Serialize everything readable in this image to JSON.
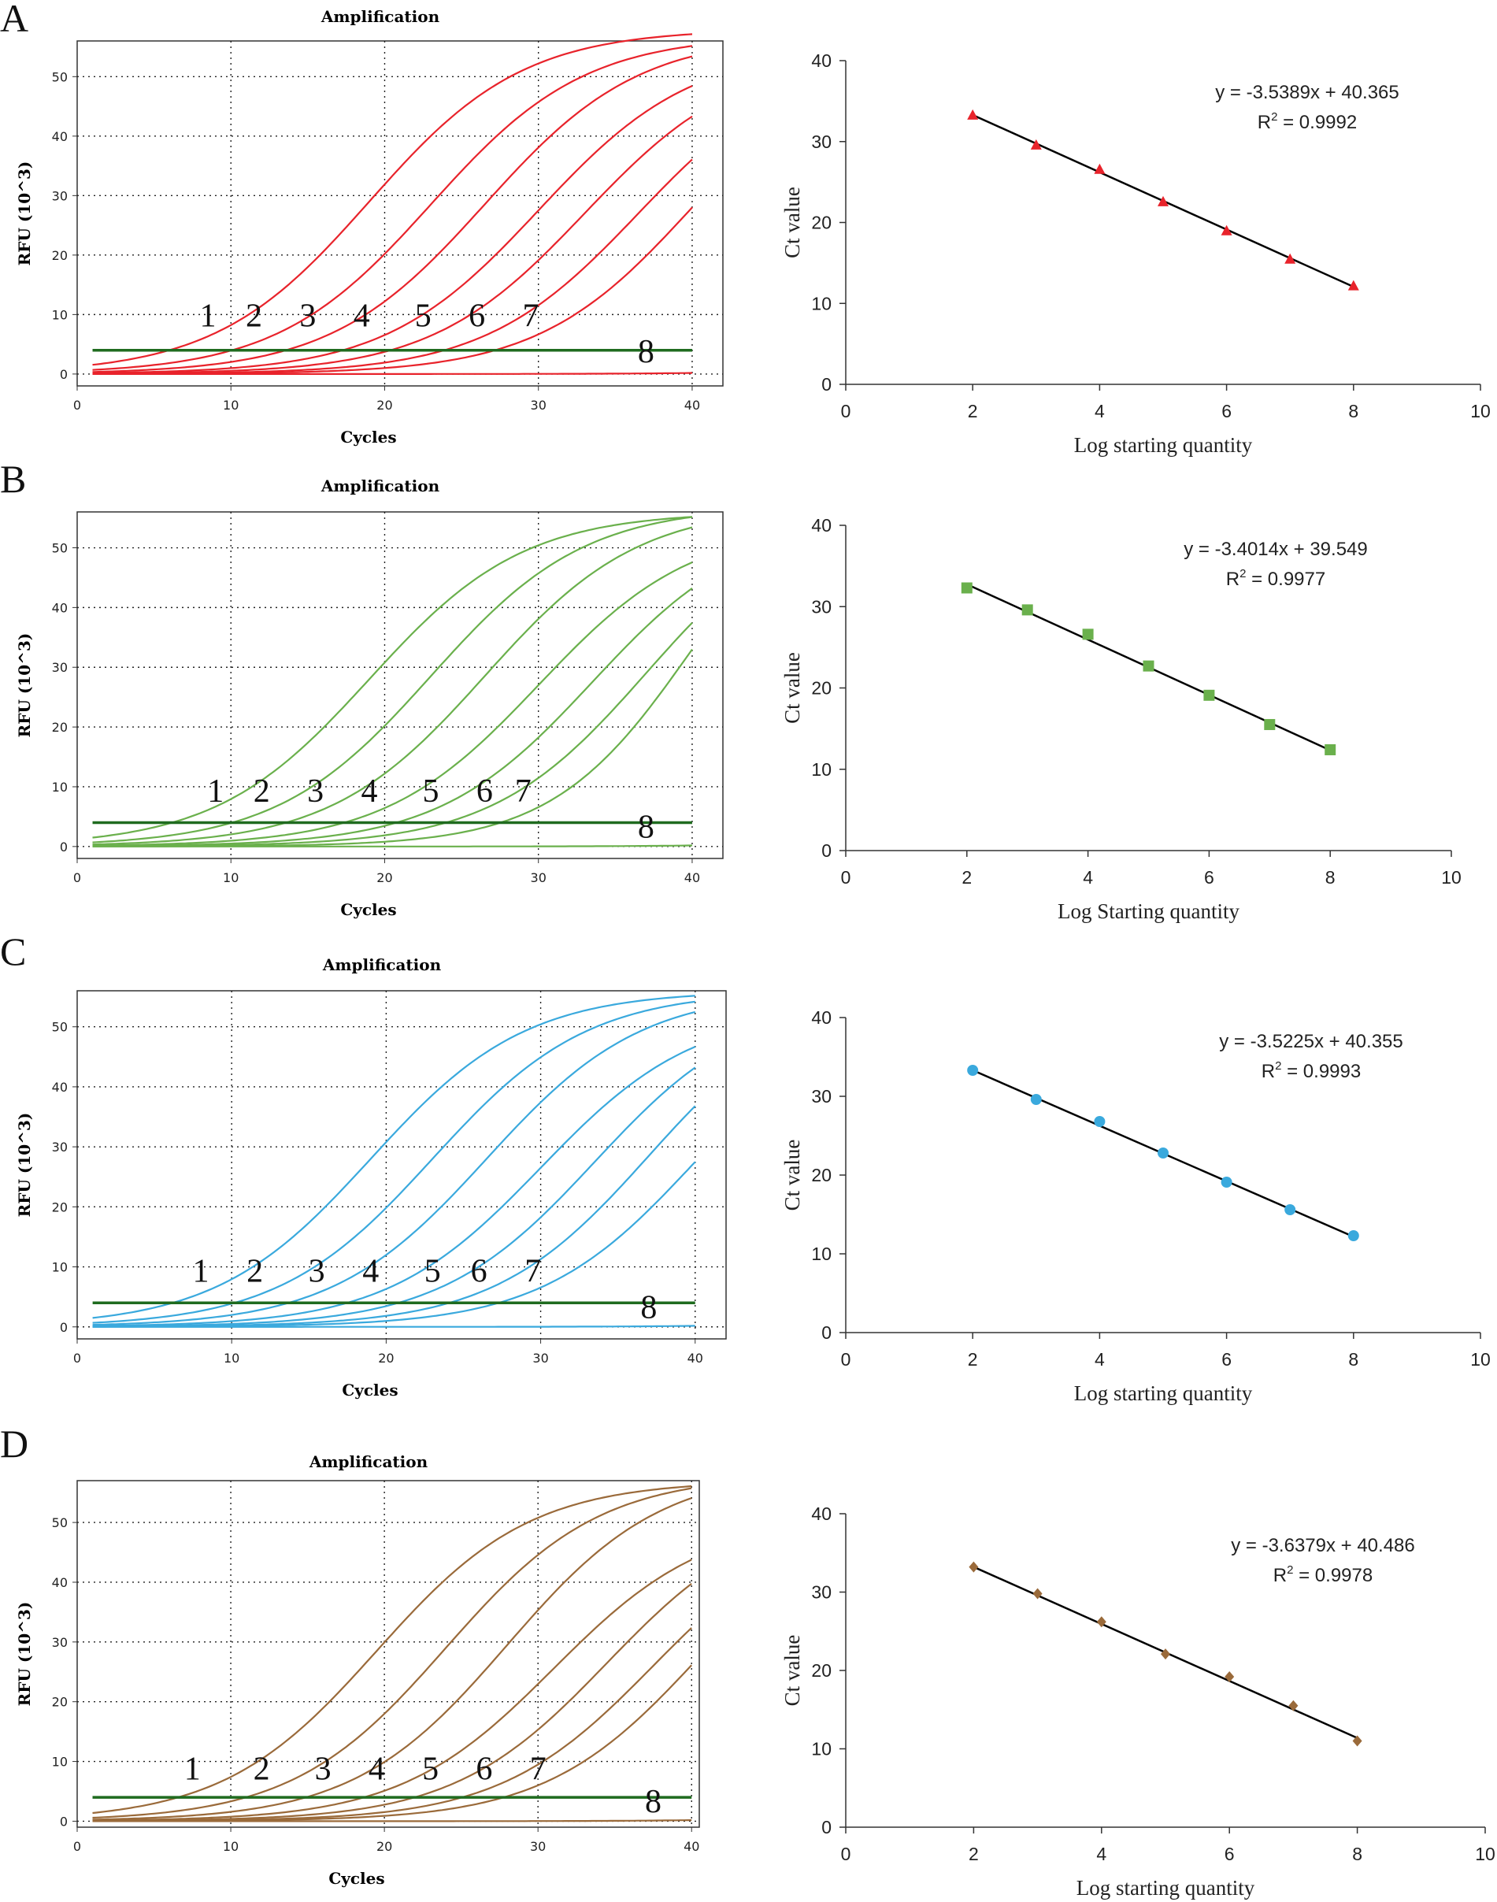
{
  "figure": {
    "panels": [
      {
        "letter": "A",
        "color": "#e8232b"
      },
      {
        "letter": "B",
        "color": "#6ab04c"
      },
      {
        "letter": "C",
        "color": "#3aa9dd"
      },
      {
        "letter": "D",
        "color": "#9a6a3a"
      }
    ],
    "threshold_color": "#1f6b1f",
    "fit_line_color": "#000000"
  },
  "chart_data": [
    {
      "id": "A-amplification",
      "type": "line",
      "panel": "A",
      "title": "Amplification",
      "xlabel": "Cycles",
      "ylabel": "RFU (10^3)",
      "xlim": [
        0,
        42
      ],
      "ylim": [
        -2,
        56
      ],
      "grid": true,
      "xticks": [
        0,
        10,
        20,
        30,
        40
      ],
      "yticks": [
        0,
        10,
        20,
        30,
        40,
        50
      ],
      "threshold": 4,
      "curve_labels": [
        {
          "text": "1",
          "x": 8.5,
          "y": 8
        },
        {
          "text": "2",
          "x": 11.5,
          "y": 8
        },
        {
          "text": "3",
          "x": 15,
          "y": 8
        },
        {
          "text": "4",
          "x": 18.5,
          "y": 8
        },
        {
          "text": "5",
          "x": 22.5,
          "y": 8
        },
        {
          "text": "6",
          "x": 26,
          "y": 8
        },
        {
          "text": "7",
          "x": 29.5,
          "y": 8
        },
        {
          "text": "8",
          "x": 37,
          "y": 2
        }
      ],
      "series": [
        {
          "name": "1",
          "mid": 19,
          "k": 0.2,
          "max": 58
        },
        {
          "name": "2",
          "mid": 23,
          "k": 0.2,
          "max": 57
        },
        {
          "name": "3",
          "mid": 26.5,
          "k": 0.2,
          "max": 57
        },
        {
          "name": "4",
          "mid": 30,
          "k": 0.2,
          "max": 55
        },
        {
          "name": "5",
          "mid": 33,
          "k": 0.2,
          "max": 54
        },
        {
          "name": "6",
          "mid": 36.5,
          "k": 0.2,
          "max": 54
        },
        {
          "name": "7",
          "mid": 40,
          "k": 0.2,
          "max": 56
        },
        {
          "name": "8",
          "mid": 60,
          "k": 0.2,
          "max": 10
        }
      ]
    },
    {
      "id": "A-standard-curve",
      "type": "scatter",
      "panel": "A",
      "xlabel": "Log starting quantity",
      "ylabel": "Ct value",
      "xlim": [
        0,
        10
      ],
      "ylim": [
        0,
        40
      ],
      "xticks": [
        0,
        2,
        4,
        6,
        8,
        10
      ],
      "yticks": [
        0,
        10,
        20,
        30,
        40
      ],
      "marker": "triangle",
      "x": [
        2,
        3,
        4,
        5,
        6,
        7,
        8
      ],
      "y": [
        33.2,
        29.5,
        26.5,
        22.5,
        18.9,
        15.4,
        12.1
      ],
      "fit": {
        "slope": -3.5389,
        "intercept": 40.365
      },
      "equation": "y = -3.5389x + 40.365",
      "r2_label": "R",
      "r2_value": " = 0.9992"
    },
    {
      "id": "B-amplification",
      "type": "line",
      "panel": "B",
      "title": "Amplification",
      "xlabel": "Cycles",
      "ylabel": "RFU (10^3)",
      "xlim": [
        0,
        42
      ],
      "ylim": [
        -2,
        56
      ],
      "grid": true,
      "xticks": [
        0,
        10,
        20,
        30,
        40
      ],
      "yticks": [
        0,
        10,
        20,
        30,
        40,
        50
      ],
      "threshold": 4,
      "curve_labels": [
        {
          "text": "1",
          "x": 9,
          "y": 7.5
        },
        {
          "text": "2",
          "x": 12,
          "y": 7.5
        },
        {
          "text": "3",
          "x": 15.5,
          "y": 7.5
        },
        {
          "text": "4",
          "x": 19,
          "y": 7.5
        },
        {
          "text": "5",
          "x": 23,
          "y": 7.5
        },
        {
          "text": "6",
          "x": 26.5,
          "y": 7.5
        },
        {
          "text": "7",
          "x": 29,
          "y": 7.5
        },
        {
          "text": "8",
          "x": 37,
          "y": 1.5
        }
      ],
      "series": [
        {
          "name": "1",
          "mid": 19,
          "k": 0.2,
          "max": 56
        },
        {
          "name": "2",
          "mid": 23,
          "k": 0.2,
          "max": 57
        },
        {
          "name": "3",
          "mid": 26.5,
          "k": 0.2,
          "max": 57
        },
        {
          "name": "4",
          "mid": 30,
          "k": 0.2,
          "max": 54
        },
        {
          "name": "5",
          "mid": 33.5,
          "k": 0.2,
          "max": 55
        },
        {
          "name": "6",
          "mid": 37,
          "k": 0.2,
          "max": 58
        },
        {
          "name": "7",
          "mid": 40,
          "k": 0.22,
          "max": 66
        },
        {
          "name": "8",
          "mid": 60,
          "k": 0.2,
          "max": 10
        }
      ]
    },
    {
      "id": "B-standard-curve",
      "type": "scatter",
      "panel": "B",
      "xlabel": "Log Starting quantity",
      "ylabel": "Ct value",
      "xlim": [
        0,
        10
      ],
      "ylim": [
        0,
        40
      ],
      "xticks": [
        0,
        2,
        4,
        6,
        8,
        10
      ],
      "yticks": [
        0,
        10,
        20,
        30,
        40
      ],
      "marker": "square",
      "x": [
        2,
        3,
        4,
        5,
        6,
        7,
        8
      ],
      "y": [
        32.3,
        29.6,
        26.6,
        22.7,
        19.1,
        15.5,
        12.4
      ],
      "fit": {
        "slope": -3.4014,
        "intercept": 39.549
      },
      "equation": "y = -3.4014x + 39.549",
      "r2_label": "R",
      "r2_value": " = 0.9977"
    },
    {
      "id": "C-amplification",
      "type": "line",
      "panel": "C",
      "title": "Amplification",
      "xlabel": "Cycles",
      "ylabel": "RFU (10^3)",
      "xlim": [
        0,
        42
      ],
      "ylim": [
        -2,
        56
      ],
      "grid": true,
      "xticks": [
        0,
        10,
        20,
        30,
        40
      ],
      "yticks": [
        0,
        10,
        20,
        30,
        40,
        50
      ],
      "threshold": 4,
      "curve_labels": [
        {
          "text": "1",
          "x": 8,
          "y": 7.5
        },
        {
          "text": "2",
          "x": 11.5,
          "y": 7.5
        },
        {
          "text": "3",
          "x": 15.5,
          "y": 7.5
        },
        {
          "text": "4",
          "x": 19,
          "y": 7.5
        },
        {
          "text": "5",
          "x": 23,
          "y": 7.5
        },
        {
          "text": "6",
          "x": 26,
          "y": 7.5
        },
        {
          "text": "7",
          "x": 29.5,
          "y": 7.5
        },
        {
          "text": "8",
          "x": 37,
          "y": 1.5
        }
      ],
      "series": [
        {
          "name": "1",
          "mid": 19,
          "k": 0.2,
          "max": 56
        },
        {
          "name": "2",
          "mid": 23,
          "k": 0.2,
          "max": 56
        },
        {
          "name": "3",
          "mid": 26.5,
          "k": 0.2,
          "max": 56
        },
        {
          "name": "4",
          "mid": 30,
          "k": 0.2,
          "max": 53
        },
        {
          "name": "5",
          "mid": 33.5,
          "k": 0.2,
          "max": 55
        },
        {
          "name": "6",
          "mid": 37,
          "k": 0.2,
          "max": 57
        },
        {
          "name": "7",
          "mid": 40,
          "k": 0.2,
          "max": 55
        },
        {
          "name": "8",
          "mid": 60,
          "k": 0.2,
          "max": 10
        }
      ]
    },
    {
      "id": "C-standard-curve",
      "type": "scatter",
      "panel": "C",
      "xlabel": "Log starting quantity",
      "ylabel": "Ct value",
      "xlim": [
        0,
        10
      ],
      "ylim": [
        0,
        40
      ],
      "xticks": [
        0,
        2,
        4,
        6,
        8,
        10
      ],
      "yticks": [
        0,
        10,
        20,
        30,
        40
      ],
      "marker": "circle",
      "x": [
        2,
        3,
        4,
        5,
        6,
        7,
        8
      ],
      "y": [
        33.3,
        29.6,
        26.8,
        22.8,
        19.1,
        15.6,
        12.3
      ],
      "fit": {
        "slope": -3.5225,
        "intercept": 40.355
      },
      "equation": "y = -3.5225x + 40.355",
      "r2_label": "R",
      "r2_value": " = 0.9993"
    },
    {
      "id": "D-amplification",
      "type": "line",
      "panel": "D",
      "title": "Amplification",
      "xlabel": "Cycles",
      "ylabel": "RFU (10^3)",
      "xlim": [
        0,
        40.5
      ],
      "ylim": [
        -1,
        57
      ],
      "grid": true,
      "xticks": [
        0,
        10,
        20,
        30,
        40
      ],
      "yticks": [
        0,
        10,
        20,
        30,
        40,
        50
      ],
      "threshold": 4,
      "curve_labels": [
        {
          "text": "1",
          "x": 7.5,
          "y": 7
        },
        {
          "text": "2",
          "x": 12,
          "y": 7
        },
        {
          "text": "3",
          "x": 16,
          "y": 7
        },
        {
          "text": "4",
          "x": 19.5,
          "y": 7
        },
        {
          "text": "5",
          "x": 23,
          "y": 7
        },
        {
          "text": "6",
          "x": 26.5,
          "y": 7
        },
        {
          "text": "7",
          "x": 30,
          "y": 7
        },
        {
          "text": "8",
          "x": 37.5,
          "y": 1.5
        }
      ],
      "series": [
        {
          "name": "1",
          "mid": 19.5,
          "k": 0.2,
          "max": 57
        },
        {
          "name": "2",
          "mid": 24,
          "k": 0.2,
          "max": 58
        },
        {
          "name": "3",
          "mid": 28,
          "k": 0.2,
          "max": 59
        },
        {
          "name": "4",
          "mid": 31,
          "k": 0.2,
          "max": 51
        },
        {
          "name": "5",
          "mid": 34.5,
          "k": 0.2,
          "max": 53
        },
        {
          "name": "6",
          "mid": 37.5,
          "k": 0.2,
          "max": 52
        },
        {
          "name": "7",
          "mid": 40.5,
          "k": 0.2,
          "max": 55
        },
        {
          "name": "8",
          "mid": 60,
          "k": 0.2,
          "max": 10
        }
      ]
    },
    {
      "id": "D-standard-curve",
      "type": "scatter",
      "panel": "D",
      "xlabel": "Log starting quantity",
      "ylabel": "Ct value",
      "xlim": [
        0,
        10
      ],
      "ylim": [
        0,
        40
      ],
      "xticks": [
        0,
        2,
        4,
        6,
        8,
        10
      ],
      "yticks": [
        0,
        10,
        20,
        30,
        40
      ],
      "marker": "diamond",
      "x": [
        2,
        3,
        4,
        5,
        6,
        7,
        8
      ],
      "y": [
        33.2,
        29.8,
        26.2,
        22.1,
        19.2,
        15.5,
        11.0
      ],
      "fit": {
        "slope": -3.6379,
        "intercept": 40.486
      },
      "equation": "y = -3.6379x + 40.486",
      "r2_label": "R",
      "r2_value": " = 0.9978"
    }
  ]
}
